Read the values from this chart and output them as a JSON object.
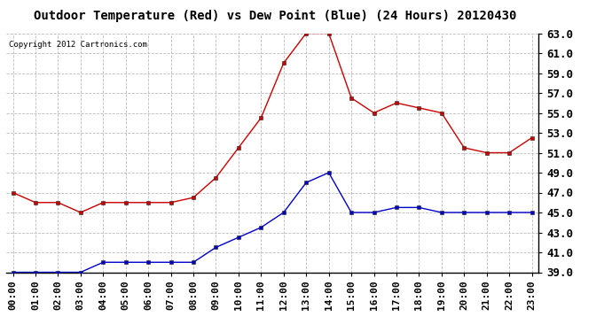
{
  "title": "Outdoor Temperature (Red) vs Dew Point (Blue) (24 Hours) 20120430",
  "copyright_text": "Copyright 2012 Cartronics.com",
  "hours": [
    0,
    1,
    2,
    3,
    4,
    5,
    6,
    7,
    8,
    9,
    10,
    11,
    12,
    13,
    14,
    15,
    16,
    17,
    18,
    19,
    20,
    21,
    22,
    23
  ],
  "hour_labels": [
    "00:00",
    "01:00",
    "02:00",
    "03:00",
    "04:00",
    "05:00",
    "06:00",
    "07:00",
    "08:00",
    "09:00",
    "10:00",
    "11:00",
    "12:00",
    "13:00",
    "14:00",
    "15:00",
    "16:00",
    "17:00",
    "18:00",
    "19:00",
    "20:00",
    "21:00",
    "22:00",
    "23:00"
  ],
  "temp_red": [
    47.0,
    46.0,
    46.0,
    45.0,
    46.0,
    46.0,
    46.0,
    46.0,
    46.5,
    48.5,
    51.5,
    54.5,
    60.0,
    63.0,
    63.0,
    56.5,
    55.0,
    56.0,
    55.5,
    55.0,
    51.5,
    51.0,
    51.0,
    52.5
  ],
  "dew_blue": [
    39.0,
    39.0,
    39.0,
    39.0,
    40.0,
    40.0,
    40.0,
    40.0,
    40.0,
    41.5,
    42.5,
    43.5,
    45.0,
    48.0,
    49.0,
    45.0,
    45.0,
    45.5,
    45.5,
    45.0,
    45.0,
    45.0,
    45.0,
    45.0
  ],
  "ylim": [
    39.0,
    63.0
  ],
  "yticks": [
    39.0,
    41.0,
    43.0,
    45.0,
    47.0,
    49.0,
    51.0,
    53.0,
    55.0,
    57.0,
    59.0,
    61.0,
    63.0
  ],
  "bg_color": "#ffffff",
  "grid_color": "#bbbbbb",
  "red_color": "#cc0000",
  "blue_color": "#0000cc",
  "title_fontsize": 10,
  "tick_fontsize": 8,
  "ytick_fontsize": 9,
  "copyright_fontsize": 6.5
}
